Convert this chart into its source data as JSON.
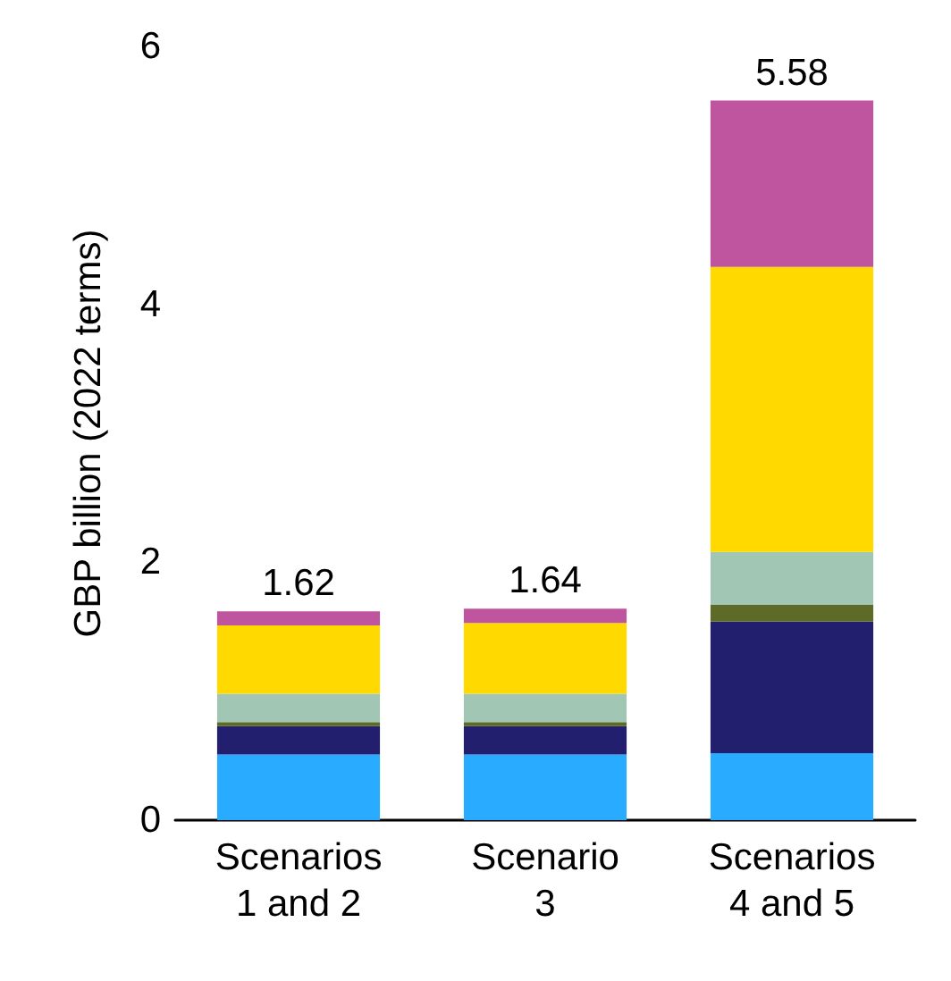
{
  "chart_data": {
    "type": "bar",
    "stacked": true,
    "ylabel": "GBP billion (2022 terms)",
    "categories": [
      "Scenarios\n1 and 2",
      "Scenario\n3",
      "Scenarios\n4 and 5"
    ],
    "ylim": [
      0,
      6
    ],
    "yticks": [
      0,
      2,
      4,
      6
    ],
    "grid": false,
    "series": [
      {
        "color": "#29abff",
        "values": [
          0.51,
          0.51,
          0.52
        ]
      },
      {
        "color": "#22206e",
        "values": [
          0.22,
          0.22,
          1.02
        ]
      },
      {
        "color": "#5e6b28",
        "values": [
          0.03,
          0.03,
          0.13
        ]
      },
      {
        "color": "#a2c6b4",
        "values": [
          0.22,
          0.22,
          0.41
        ]
      },
      {
        "color": "#ffd900",
        "values": [
          0.53,
          0.55,
          2.21
        ]
      },
      {
        "color": "#c0559f",
        "values": [
          0.11,
          0.11,
          1.29
        ]
      }
    ],
    "totals": [
      "1.62",
      "1.64",
      "5.58"
    ]
  }
}
